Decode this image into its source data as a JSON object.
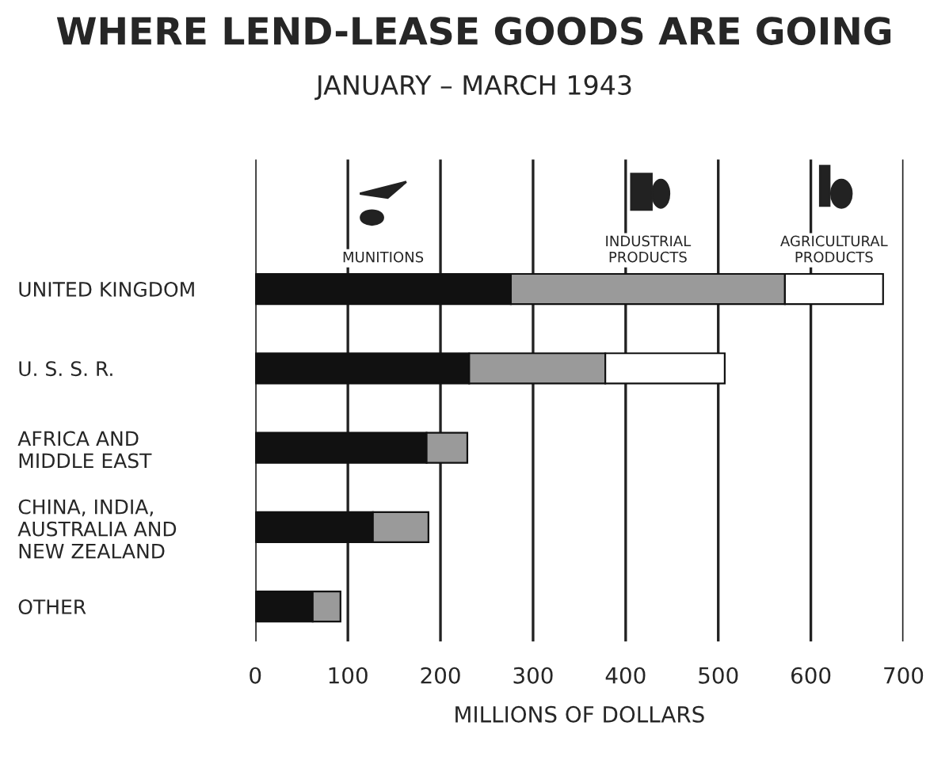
{
  "chart_data": {
    "type": "bar",
    "orientation": "horizontal",
    "stacked": true,
    "title": "WHERE LEND-LEASE GOODS ARE GOING",
    "subtitle": "JANUARY – MARCH 1943",
    "xlabel": "MILLIONS OF DOLLARS",
    "categories": [
      "UNITED KINGDOM",
      "U. S. S. R.",
      "AFRICA AND\nMIDDLE EAST",
      "CHINA, INDIA,\nAUSTRALIA AND\nNEW ZEALAND",
      "OTHER"
    ],
    "series": [
      {
        "name": "MUNITIONS",
        "color": "#111111",
        "values": [
          276,
          231,
          185,
          127,
          62
        ]
      },
      {
        "name": "INDUSTRIAL\nPRODUCTS",
        "color": "#9a9a9a",
        "values": [
          296,
          147,
          44,
          60,
          30
        ]
      },
      {
        "name": "AGRICULTURAL\nPRODUCTS",
        "color": "#ffffff",
        "values": [
          106,
          129,
          null,
          null,
          null
        ]
      }
    ],
    "xlim": [
      0,
      700
    ],
    "xticks": [
      0,
      100,
      200,
      300,
      400,
      500,
      600,
      700
    ],
    "grid": "x",
    "legend": "top"
  }
}
